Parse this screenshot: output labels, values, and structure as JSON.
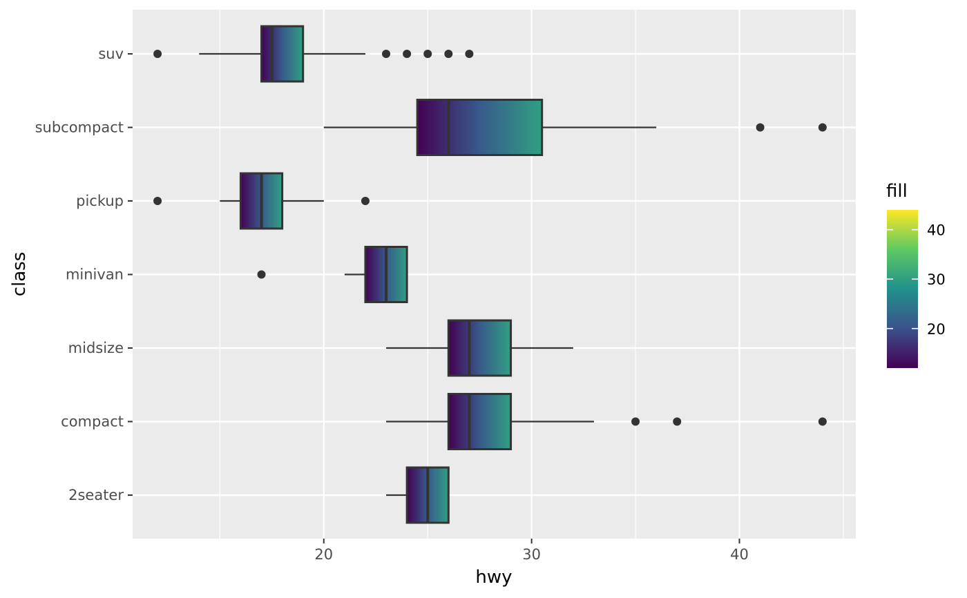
{
  "chart_data": {
    "type": "boxplot",
    "orientation": "horizontal",
    "xlabel": "hwy",
    "ylabel": "class",
    "xlim": [
      10.8,
      45.6
    ],
    "x_ticks": [
      20,
      30,
      40
    ],
    "x_minor_ticks": [
      15,
      25,
      35,
      45
    ],
    "grid": true,
    "categories": [
      "2seater",
      "compact",
      "midsize",
      "minivan",
      "pickup",
      "subcompact",
      "suv"
    ],
    "boxes": [
      {
        "category": "2seater",
        "whisker_low": 23,
        "q1": 24,
        "median": 25,
        "q3": 26,
        "whisker_high": 26,
        "outliers": []
      },
      {
        "category": "compact",
        "whisker_low": 23,
        "q1": 26,
        "median": 27,
        "q3": 29,
        "whisker_high": 33,
        "outliers": [
          35,
          37,
          44
        ]
      },
      {
        "category": "midsize",
        "whisker_low": 23,
        "q1": 26,
        "median": 27,
        "q3": 29,
        "whisker_high": 32,
        "outliers": []
      },
      {
        "category": "minivan",
        "whisker_low": 21,
        "q1": 22,
        "median": 23,
        "q3": 24,
        "whisker_high": 24,
        "outliers": [
          17
        ]
      },
      {
        "category": "pickup",
        "whisker_low": 15,
        "q1": 16,
        "median": 17,
        "q3": 18,
        "whisker_high": 20,
        "outliers": [
          12,
          22
        ]
      },
      {
        "category": "subcompact",
        "whisker_low": 20,
        "q1": 24.5,
        "median": 26,
        "q3": 30.5,
        "whisker_high": 36,
        "outliers": [
          41,
          44
        ]
      },
      {
        "category": "suv",
        "whisker_low": 14,
        "q1": 17,
        "median": 17.5,
        "q3": 19,
        "whisker_high": 22,
        "outliers": [
          12,
          23,
          24,
          25,
          26,
          27
        ]
      }
    ],
    "fill_gradient_along": "hwy",
    "legend": {
      "title": "fill",
      "placement": "right",
      "range": [
        12,
        44
      ],
      "ticks": [
        20,
        30,
        40
      ],
      "colors": [
        "#440154",
        "#3b528b",
        "#21918c",
        "#5ec962",
        "#fde725"
      ]
    },
    "colors": {
      "panel_background": "#ebebeb",
      "grid_line": "#ffffff",
      "box_outline": "#333333",
      "outlier": "#333333"
    }
  }
}
